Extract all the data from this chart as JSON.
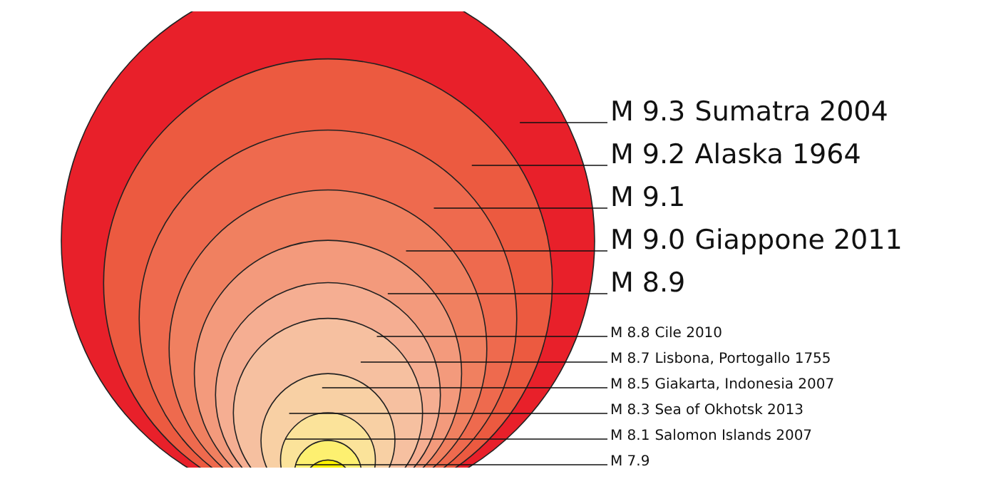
{
  "chart_data": {
    "type": "other",
    "categories": [
      "Sumatra 2004",
      "Alaska 1964",
      null,
      "Giappone 2011",
      null,
      "Cile 2010",
      "Lisbona, Portogallo 1755",
      "Giakarta, Indonesia 2007",
      "Sea of Okhotsk 2013",
      "Salomon Islands 2007",
      null
    ],
    "values": [
      9.3,
      9.2,
      9.1,
      9.0,
      8.9,
      8.8,
      8.7,
      8.5,
      8.3,
      8.1,
      7.9
    ],
    "value_labels": [
      "M 9.3",
      "M 9.2",
      "M 9.1",
      "M 9.0",
      "M 8.9",
      "M 8.8",
      "M 8.7",
      "M 8.5",
      "M 8.3",
      "M 8.1",
      "M 7.9"
    ],
    "colors": [
      "#e8202a",
      "#ec5a40",
      "#ee6a4e",
      "#f08060",
      "#f39a7c",
      "#f5ae92",
      "#f6c0a0",
      "#f8d0a4",
      "#fbe39a",
      "#fdf070",
      "#fff200"
    ]
  }
}
